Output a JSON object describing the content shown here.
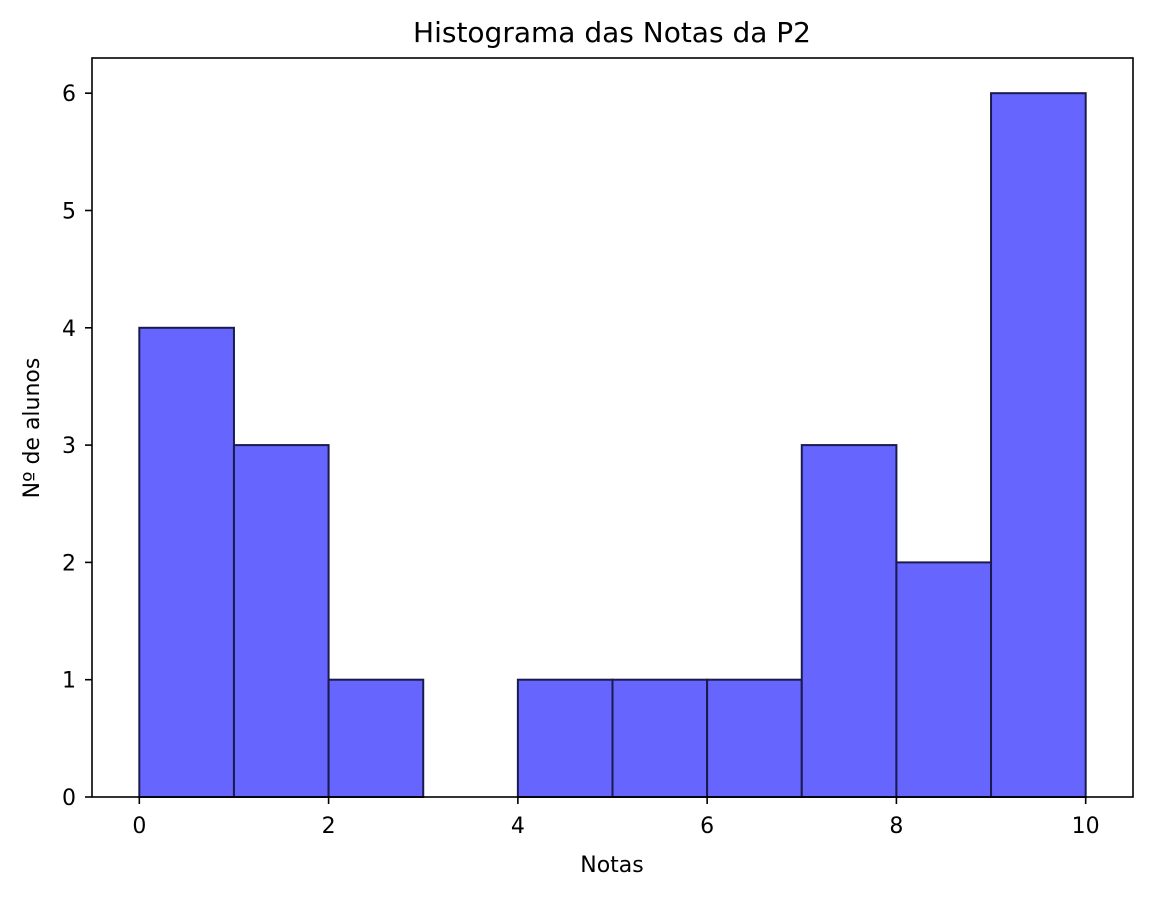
{
  "chart_data": {
    "type": "bar",
    "title": "Histograma das Notas da P2",
    "xlabel": "Notas",
    "ylabel": "Nº de alunos",
    "bin_edges": [
      0,
      1,
      2,
      3,
      4,
      5,
      6,
      7,
      8,
      9,
      10
    ],
    "values": [
      4,
      3,
      1,
      0,
      1,
      1,
      1,
      3,
      2,
      6
    ],
    "xlim": [
      -0.5,
      10.5
    ],
    "ylim": [
      0,
      6.3
    ],
    "xticks": [
      0,
      2,
      4,
      6,
      8,
      10
    ],
    "xtick_labels": [
      "0",
      "2",
      "4",
      "6",
      "8",
      "10"
    ],
    "yticks": [
      0,
      1,
      2,
      3,
      4,
      5,
      6
    ],
    "ytick_labels": [
      "0",
      "1",
      "2",
      "3",
      "4",
      "5",
      "6"
    ],
    "grid": false,
    "legend": "none",
    "bar_color": "#6666ff",
    "edge_color": "#1a1a4d"
  }
}
